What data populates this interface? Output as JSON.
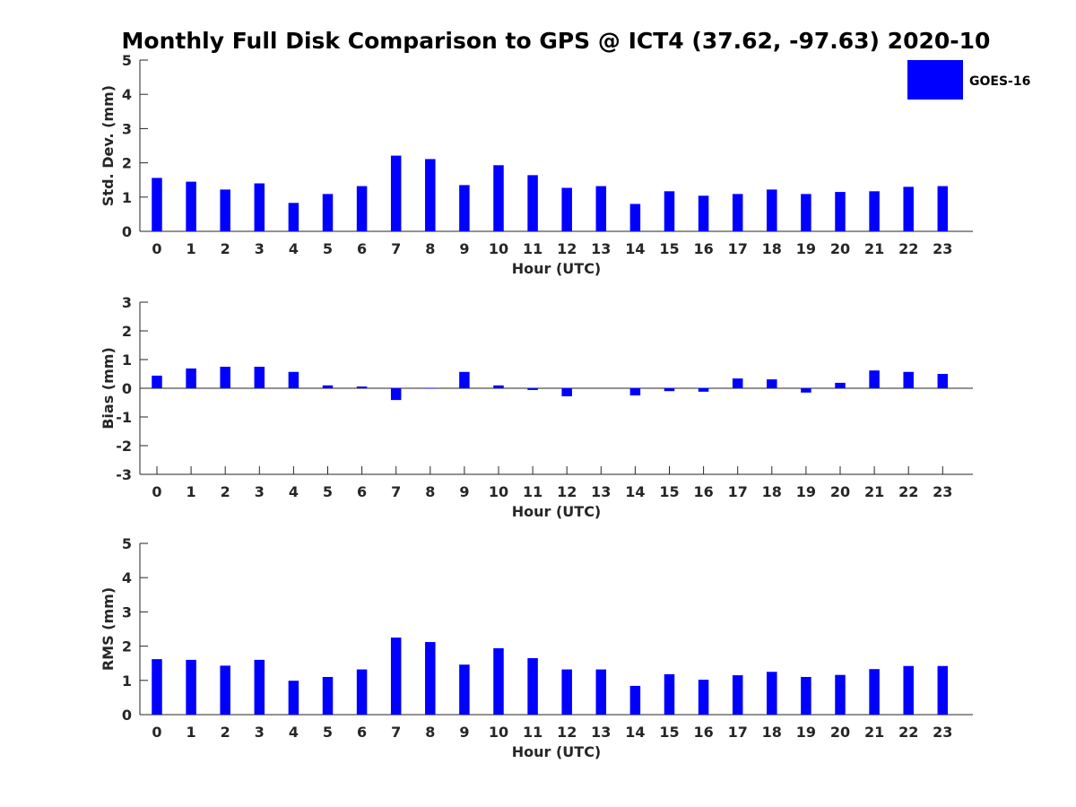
{
  "chart_data": {
    "type": "bar",
    "title": "Monthly Full Disk Comparison to GPS @ ICT4 (37.62, -97.63) 2020-10",
    "legend": {
      "label": "GOES-16",
      "color": "#0000ff",
      "placement": "top-right"
    },
    "categories": [
      "0",
      "1",
      "2",
      "3",
      "4",
      "5",
      "6",
      "7",
      "8",
      "9",
      "10",
      "11",
      "12",
      "13",
      "14",
      "15",
      "16",
      "17",
      "18",
      "19",
      "20",
      "21",
      "22",
      "23"
    ],
    "panels": [
      {
        "id": "stddev",
        "ylabel": "Std. Dev. (mm)",
        "xlabel": "Hour (UTC)",
        "ylim": [
          0,
          5
        ],
        "yticks": [
          0,
          1,
          2,
          3,
          4,
          5
        ],
        "series": [
          {
            "name": "GOES-16",
            "values": [
              1.56,
              1.45,
              1.22,
              1.4,
              0.83,
              1.09,
              1.32,
              2.21,
              2.11,
              1.35,
              1.93,
              1.64,
              1.27,
              1.32,
              0.8,
              1.17,
              1.04,
              1.09,
              1.22,
              1.09,
              1.15,
              1.17,
              1.3,
              1.32
            ]
          }
        ]
      },
      {
        "id": "bias",
        "ylabel": "Bias (mm)",
        "xlabel": "Hour (UTC)",
        "ylim": [
          -3,
          3
        ],
        "yticks": [
          -3,
          -2,
          -1,
          0,
          1,
          2,
          3
        ],
        "series": [
          {
            "name": "GOES-16",
            "values": [
              0.44,
              0.69,
              0.75,
              0.75,
              0.57,
              0.1,
              0.06,
              -0.41,
              0.01,
              0.57,
              0.1,
              -0.06,
              -0.28,
              0.0,
              -0.25,
              -0.1,
              -0.12,
              0.34,
              0.31,
              -0.15,
              0.19,
              0.62,
              0.57,
              0.5
            ]
          }
        ]
      },
      {
        "id": "rms",
        "ylabel": "RMS (mm)",
        "xlabel": "Hour (UTC)",
        "ylim": [
          0,
          5
        ],
        "yticks": [
          0,
          1,
          2,
          3,
          4,
          5
        ],
        "series": [
          {
            "name": "GOES-16",
            "values": [
              1.62,
              1.6,
              1.43,
              1.6,
              0.99,
              1.1,
              1.32,
              2.25,
              2.12,
              1.46,
              1.94,
              1.65,
              1.32,
              1.32,
              0.84,
              1.18,
              1.02,
              1.15,
              1.25,
              1.1,
              1.16,
              1.33,
              1.42,
              1.42
            ]
          }
        ]
      }
    ]
  }
}
